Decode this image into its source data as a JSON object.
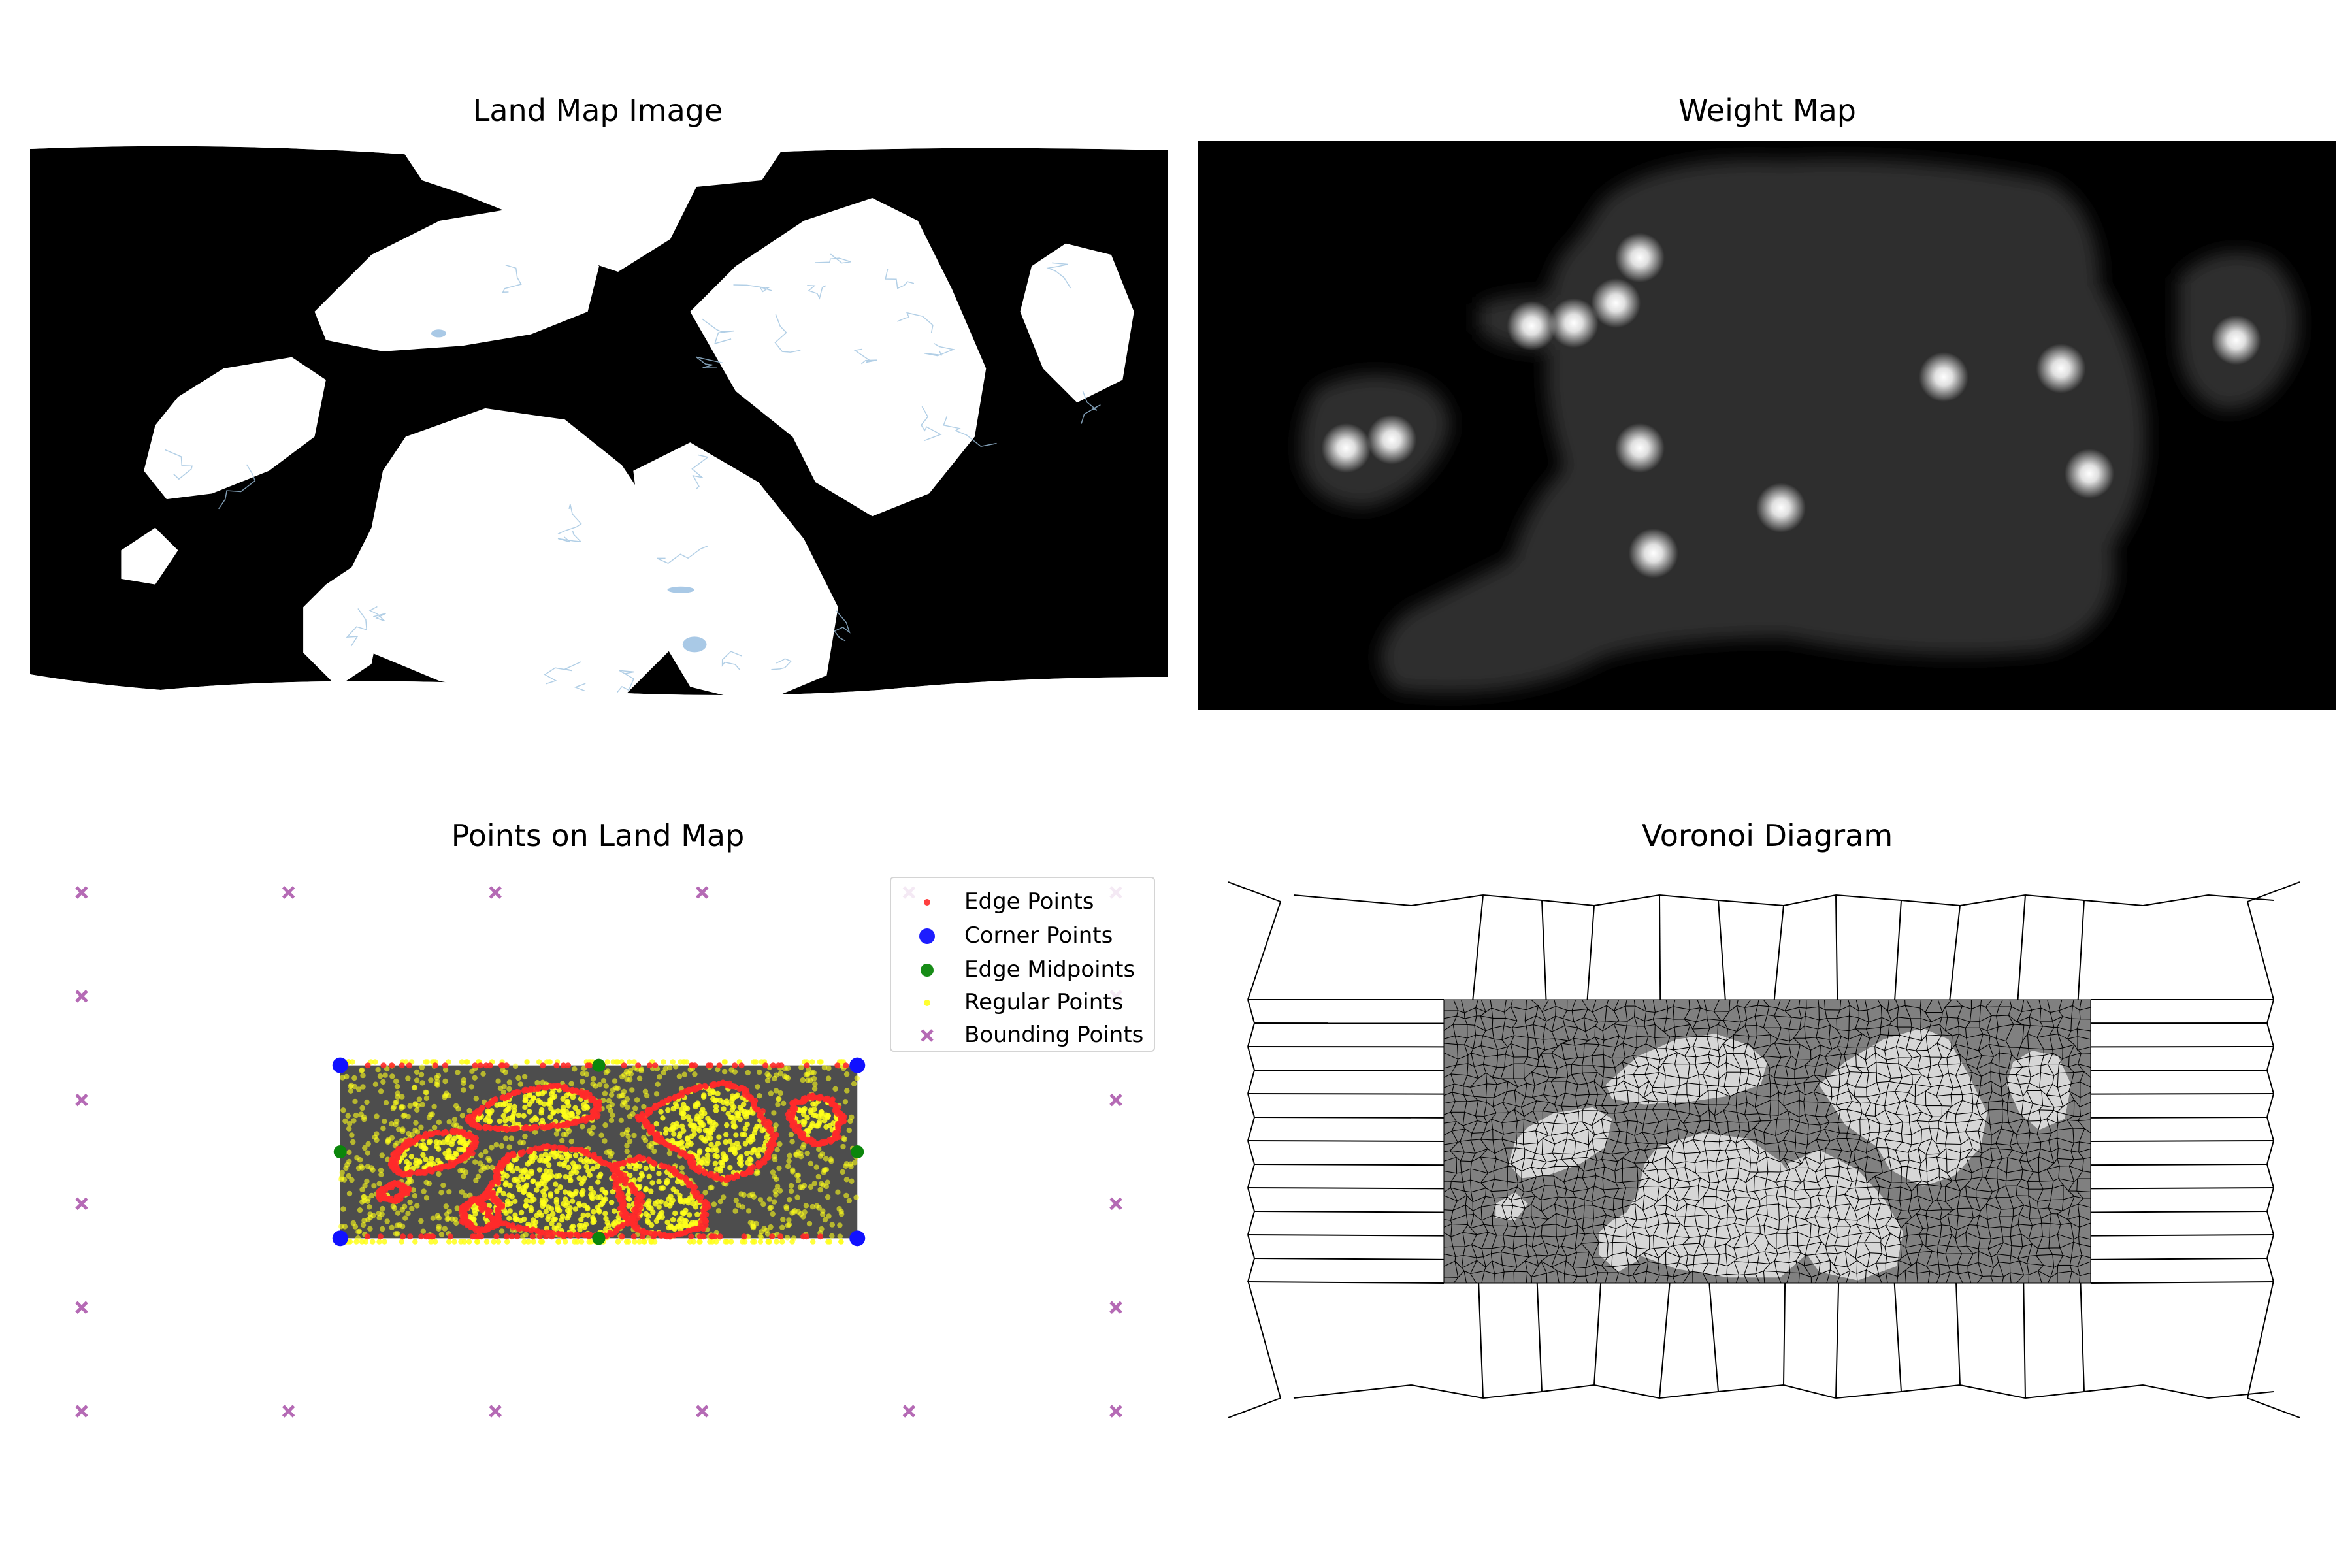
{
  "figure": {
    "panels": [
      {
        "title": "Land Map Image"
      },
      {
        "title": "Weight Map"
      },
      {
        "title": "Points on Land Map"
      },
      {
        "title": "Voronoi Diagram"
      }
    ]
  },
  "colors": {
    "land": "#ffffff",
    "water": "#000000",
    "weight_land": "#2e2e2e",
    "weight_peak": "#ffffff",
    "points_bg": "#4d4d4d",
    "edge": "#ff2a2a",
    "corner": "#1111ff",
    "midpoint": "#0b860b",
    "regular": "#ffff1a",
    "bounding": "#b56ab5",
    "voronoi_fill": "#808080",
    "voronoi_line": "#000000"
  },
  "chart_data": [
    {
      "type": "image",
      "title": "Land Map Image"
    },
    {
      "type": "heatmap",
      "title": "Weight Map",
      "peaks": [
        {
          "x": 0.13,
          "y": 0.54
        },
        {
          "x": 0.17,
          "y": 0.525
        },
        {
          "x": 0.293,
          "y": 0.325
        },
        {
          "x": 0.33,
          "y": 0.32
        },
        {
          "x": 0.367,
          "y": 0.285
        },
        {
          "x": 0.388,
          "y": 0.205
        },
        {
          "x": 0.388,
          "y": 0.54
        },
        {
          "x": 0.4,
          "y": 0.725
        },
        {
          "x": 0.512,
          "y": 0.645
        },
        {
          "x": 0.655,
          "y": 0.415
        },
        {
          "x": 0.758,
          "y": 0.4
        },
        {
          "x": 0.783,
          "y": 0.585
        },
        {
          "x": 0.912,
          "y": 0.35
        }
      ]
    },
    {
      "type": "scatter",
      "title": "Points on Land Map",
      "legend": "top-right",
      "xlim": [
        -0.5,
        1.5
      ],
      "ylim": [
        -0.5,
        1.0
      ],
      "series": [
        {
          "name": "Edge Points",
          "marker": "dot",
          "count": 700
        },
        {
          "name": "Corner Points",
          "marker": "circle",
          "points": [
            [
              0,
              0
            ],
            [
              1,
              0
            ],
            [
              0,
              0.5
            ],
            [
              1,
              0.5
            ]
          ]
        },
        {
          "name": "Edge Midpoints",
          "marker": "circle",
          "points": [
            [
              0.5,
              0
            ],
            [
              0.5,
              0.5
            ],
            [
              0,
              0.25
            ],
            [
              1,
              0.25
            ]
          ]
        },
        {
          "name": "Regular Points",
          "marker": "dot",
          "count": 2000
        },
        {
          "name": "Bounding Points",
          "marker": "x",
          "points": [
            [
              -0.5,
              -0.5
            ],
            [
              -0.1,
              -0.5
            ],
            [
              0.3,
              -0.5
            ],
            [
              0.7,
              -0.5
            ],
            [
              1.1,
              -0.5
            ],
            [
              1.5,
              -0.5
            ],
            [
              -0.5,
              1.0
            ],
            [
              -0.1,
              1.0
            ],
            [
              0.3,
              1.0
            ],
            [
              0.7,
              1.0
            ],
            [
              1.1,
              1.0
            ],
            [
              1.5,
              1.0
            ],
            [
              -0.5,
              -0.2
            ],
            [
              -0.5,
              0.1
            ],
            [
              -0.5,
              0.4
            ],
            [
              -0.5,
              0.7
            ],
            [
              1.5,
              -0.2
            ],
            [
              1.5,
              0.1
            ],
            [
              1.5,
              0.4
            ],
            [
              1.5,
              0.7
            ]
          ]
        }
      ]
    },
    {
      "type": "voronoi",
      "title": "Voronoi Diagram"
    }
  ]
}
